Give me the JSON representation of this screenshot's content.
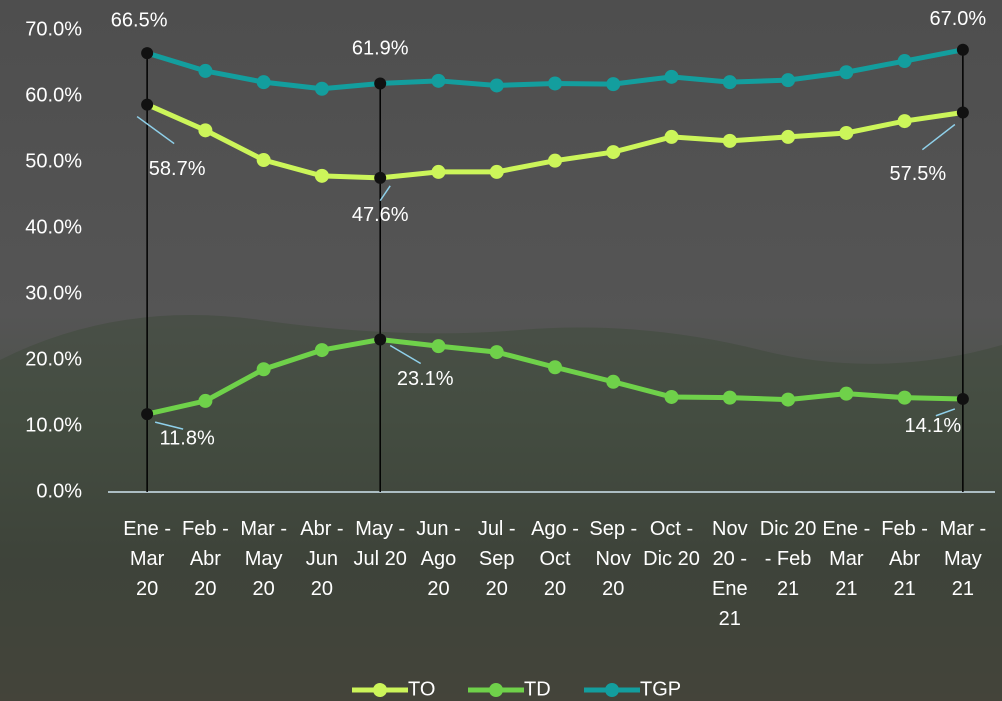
{
  "chart_data": {
    "type": "line",
    "categories": [
      "Ene - Mar 20",
      "Feb - Abr 20",
      "Mar - May 20",
      "Abr - Jun 20",
      "May - Jul 20",
      "Jun - Ago 20",
      "Jul - Sep 20",
      "Ago - Oct 20",
      "Sep - Nov 20",
      "Oct - Dic 20",
      "Nov 20 - Ene 21",
      "Dic 20 - Feb 21",
      "Ene - Mar 21",
      "Feb - Abr 21",
      "Mar - May 21"
    ],
    "series": [
      {
        "name": "TO",
        "color": "#ccf55a",
        "values": [
          58.7,
          54.8,
          50.3,
          47.9,
          47.6,
          48.5,
          48.5,
          50.2,
          51.5,
          53.8,
          53.2,
          53.8,
          54.4,
          56.2,
          57.5
        ],
        "value_labels": [
          "58.7%",
          null,
          null,
          null,
          "47.6%",
          null,
          null,
          null,
          null,
          null,
          null,
          null,
          null,
          null,
          "57.5%"
        ]
      },
      {
        "name": "TD",
        "color": "#6fd14a",
        "values": [
          11.8,
          13.8,
          18.6,
          21.5,
          23.1,
          22.1,
          21.2,
          18.9,
          16.7,
          14.4,
          14.3,
          14.0,
          14.9,
          14.3,
          14.1
        ],
        "value_labels": [
          "11.8%",
          null,
          null,
          null,
          "23.1%",
          null,
          null,
          null,
          null,
          null,
          null,
          null,
          null,
          null,
          "14.1%"
        ]
      },
      {
        "name": "TGP",
        "color": "#139e9e",
        "values": [
          66.5,
          63.8,
          62.1,
          61.1,
          61.9,
          62.3,
          61.6,
          61.9,
          61.8,
          62.9,
          62.1,
          62.4,
          63.6,
          65.3,
          67.0
        ],
        "value_labels": [
          "66.5%",
          null,
          null,
          null,
          "61.9%",
          null,
          null,
          null,
          null,
          null,
          null,
          null,
          null,
          null,
          "67.0%"
        ]
      }
    ],
    "ylim": [
      0,
      70
    ],
    "yticks": [
      {
        "value": 0,
        "label": "0.0%"
      },
      {
        "value": 10,
        "label": "10.0%"
      },
      {
        "value": 20,
        "label": "20.0%"
      },
      {
        "value": 30,
        "label": "30.0%"
      },
      {
        "value": 40,
        "label": "40.0%"
      },
      {
        "value": 50,
        "label": "50.0%"
      },
      {
        "value": 60,
        "label": "60.0%"
      },
      {
        "value": 70,
        "label": "70.0%"
      }
    ],
    "legend": "bottom"
  }
}
